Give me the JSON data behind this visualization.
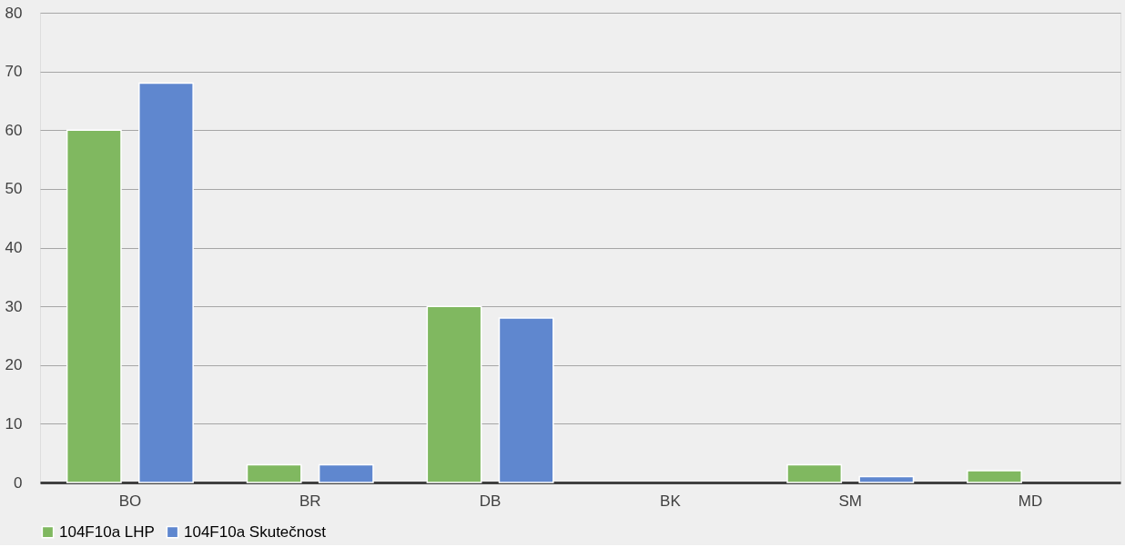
{
  "chart_data": {
    "type": "bar",
    "categories": [
      "BO",
      "BR",
      "DB",
      "BK",
      "SM",
      "MD"
    ],
    "series": [
      {
        "name": "104F10a LHP",
        "color": "#80b860",
        "values": [
          60,
          3,
          30,
          0,
          3,
          2
        ]
      },
      {
        "name": "104F10a Skutečnost",
        "color": "#5f87cf",
        "values": [
          68,
          3,
          28,
          0,
          1,
          0
        ]
      }
    ],
    "ylim": [
      0,
      80
    ],
    "yticks": [
      0,
      10,
      20,
      30,
      40,
      50,
      60,
      70,
      80
    ],
    "grid": "y",
    "legend": "bottom"
  }
}
